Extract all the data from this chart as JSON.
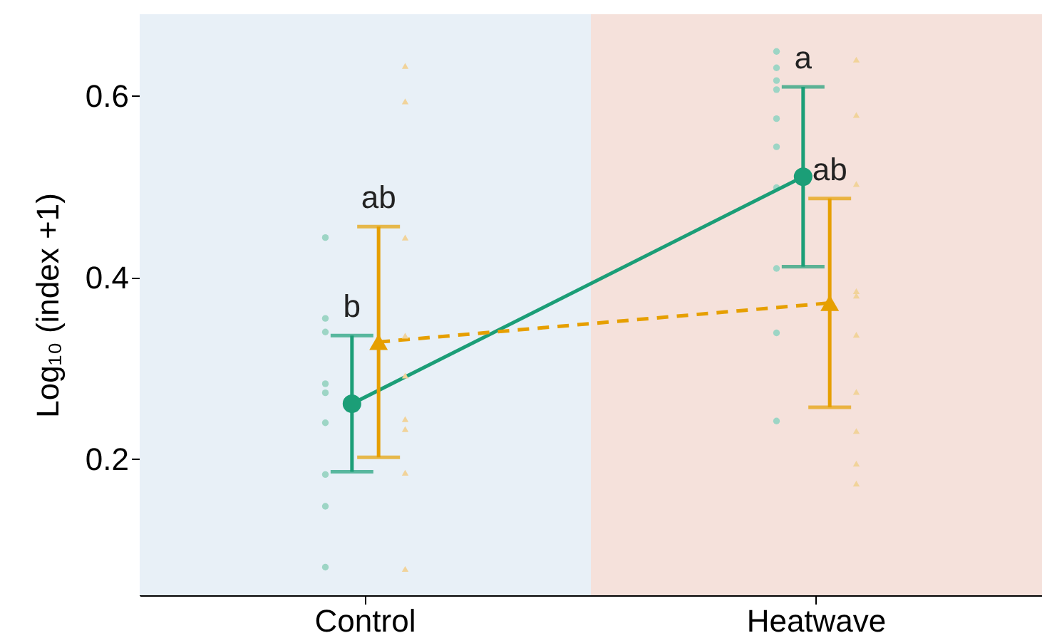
{
  "chart_data": {
    "type": "line",
    "ylabel": "Log₁₀ (index +1)",
    "categories": [
      "Control",
      "Heatwave"
    ],
    "ylim": [
      0.05,
      0.69
    ],
    "yticks": [
      0.2,
      0.4,
      0.6
    ],
    "grid": false,
    "bands": [
      {
        "axis": "x",
        "from": "Control",
        "to": "Control",
        "color": "#e8f0f7"
      },
      {
        "axis": "x",
        "from": "Heatwave",
        "to": "Heatwave",
        "color": "#f5e1db"
      }
    ],
    "series": [
      {
        "type": "scatter",
        "color": "#9dd5c5",
        "marker": "circle",
        "x": [
          "Control",
          "Control",
          "Control",
          "Control",
          "Control",
          "Control",
          "Control",
          "Control",
          "Control",
          "Heatwave",
          "Heatwave",
          "Heatwave",
          "Heatwave",
          "Heatwave",
          "Heatwave",
          "Heatwave",
          "Heatwave",
          "Heatwave",
          "Heatwave"
        ],
        "values": [
          0.444,
          0.355,
          0.34,
          0.283,
          0.273,
          0.24,
          0.183,
          0.148,
          0.081,
          0.649,
          0.631,
          0.617,
          0.607,
          0.575,
          0.544,
          0.499,
          0.41,
          0.339,
          0.242
        ]
      },
      {
        "color": "#1b9e77",
        "marker": "circle",
        "line_style": "solid",
        "values": [
          0.261,
          0.511
        ],
        "errors": [
          0.075,
          0.099
        ]
      },
      {
        "color": "#e69f00",
        "marker": "triangle",
        "line_style": "dashed",
        "values": [
          0.329,
          0.372
        ],
        "errors": [
          0.127,
          0.115
        ]
      },
      {
        "type": "scatter",
        "color": "#f1d39a",
        "marker": "triangle",
        "x": [
          "Control",
          "Control",
          "Control",
          "Control",
          "Control",
          "Control",
          "Control",
          "Control",
          "Control",
          "Heatwave",
          "Heatwave",
          "Heatwave",
          "Heatwave",
          "Heatwave",
          "Heatwave",
          "Heatwave",
          "Heatwave",
          "Heatwave",
          "Heatwave"
        ],
        "values": [
          0.633,
          0.594,
          0.444,
          0.336,
          0.292,
          0.244,
          0.233,
          0.185,
          0.079,
          0.64,
          0.579,
          0.503,
          0.385,
          0.38,
          0.337,
          0.274,
          0.231,
          0.195,
          0.173
        ]
      }
    ],
    "annotations": [
      {
        "text": "b",
        "x": "Control",
        "y": 0.336
      },
      {
        "text": "ab",
        "x": "Control",
        "y": 0.456
      },
      {
        "text": "a",
        "x": "Heatwave",
        "y": 0.61
      },
      {
        "text": "ab",
        "x": "Heatwave",
        "y": 0.487
      }
    ]
  }
}
